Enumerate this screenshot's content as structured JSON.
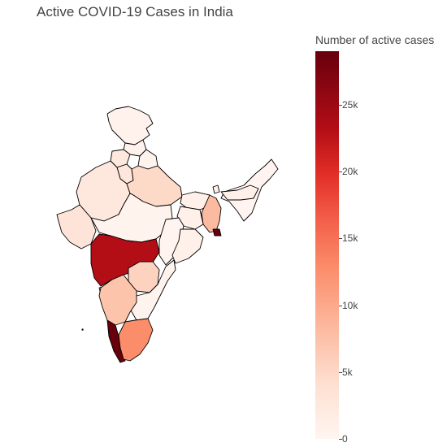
{
  "title": "Active COVID-19 Cases in India",
  "colorbar": {
    "title": "Number of active cases",
    "ticks": [
      {
        "label": "0",
        "value": 0
      },
      {
        "label": "5k",
        "value": 5000
      },
      {
        "label": "10k",
        "value": 10000
      },
      {
        "label": "15k",
        "value": 15000
      },
      {
        "label": "20k",
        "value": 20000
      },
      {
        "label": "25k",
        "value": 25000
      }
    ],
    "range": [
      0,
      29000
    ],
    "colorscale": "Reds"
  },
  "colors": {
    "min": "#fff5f0",
    "low": "#fee0d2",
    "mid": "#fcbba1",
    "orange": "#fb8d6a",
    "high": "#b30d16",
    "max": "#67000d"
  }
}
